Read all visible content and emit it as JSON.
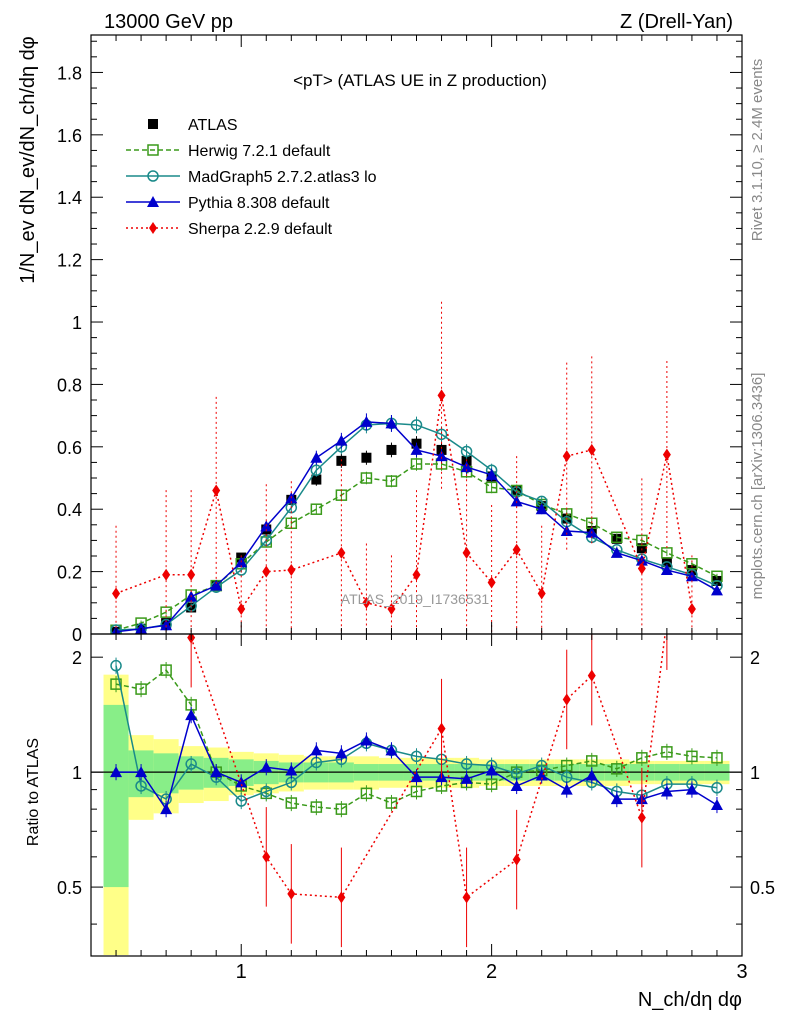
{
  "header": {
    "left": "13000 GeV pp",
    "right": "Z (Drell-Yan)"
  },
  "side_labels": {
    "rivet": "Rivet 3.1.10, ≥ 2.4M events",
    "mcplots": "mcplots.cern.ch [arXiv:1306.3436]"
  },
  "watermark": "ATLAS_2019_I1736531",
  "chart_data": {
    "type": "scatter",
    "title": "<pT> (ATLAS UE in Z production)",
    "xlabel": "N_ch/dη dφ",
    "ylabel": "1/N_ev dN_ev/dN_ch/dη dφ",
    "ratio_ylabel": "Ratio to ATLAS",
    "xlim": [
      0.4,
      3.0
    ],
    "ylim": [
      0,
      1.92
    ],
    "ratio_ylim": [
      0.33,
      2.3
    ],
    "x_ticks": [
      "1",
      "2",
      "3"
    ],
    "y_ticks": [
      "0",
      "0.2",
      "0.4",
      "0.6",
      "0.8",
      "1",
      "1.2",
      "1.4",
      "1.6",
      "1.8"
    ],
    "ratio_ticks": [
      "0.5",
      "1",
      "2"
    ],
    "legend_position": "top-left",
    "x": [
      0.5,
      0.6,
      0.7,
      0.8,
      0.9,
      1.0,
      1.1,
      1.2,
      1.3,
      1.4,
      1.5,
      1.6,
      1.7,
      1.8,
      1.9,
      2.0,
      2.1,
      2.2,
      2.3,
      2.4,
      2.5,
      2.6,
      2.7,
      2.8,
      2.9
    ],
    "series": [
      {
        "name": "ATLAS",
        "color": "#000000",
        "marker": "filled-square",
        "line": "none",
        "values": [
          0.007,
          0.017,
          0.035,
          0.085,
          0.155,
          0.245,
          0.335,
          0.43,
          0.495,
          0.555,
          0.565,
          0.59,
          0.61,
          0.59,
          0.555,
          0.505,
          0.46,
          0.41,
          0.37,
          0.33,
          0.305,
          0.275,
          0.23,
          0.205,
          0.17
        ]
      },
      {
        "name": "Herwig 7.2.1 default",
        "color": "#3a9a1a",
        "marker": "open-square",
        "line": "dashed",
        "values": [
          0.012,
          0.035,
          0.07,
          0.125,
          0.155,
          0.225,
          0.295,
          0.355,
          0.4,
          0.445,
          0.5,
          0.49,
          0.545,
          0.545,
          0.52,
          0.47,
          0.46,
          0.415,
          0.385,
          0.355,
          0.31,
          0.3,
          0.26,
          0.225,
          0.185
        ]
      },
      {
        "name": "MadGraph5 2.7.2.atlas3 lo",
        "color": "#1a8a8a",
        "marker": "open-circle",
        "line": "solid",
        "values": [
          0.013,
          0.016,
          0.03,
          0.09,
          0.15,
          0.205,
          0.3,
          0.405,
          0.525,
          0.6,
          0.67,
          0.675,
          0.67,
          0.64,
          0.585,
          0.525,
          0.455,
          0.425,
          0.36,
          0.31,
          0.27,
          0.24,
          0.215,
          0.19,
          0.155
        ]
      },
      {
        "name": "Pythia 8.308 default",
        "color": "#0000cc",
        "marker": "filled-triangle",
        "line": "solid",
        "values": [
          0.007,
          0.017,
          0.028,
          0.12,
          0.155,
          0.23,
          0.345,
          0.435,
          0.565,
          0.62,
          0.68,
          0.675,
          0.59,
          0.57,
          0.535,
          0.51,
          0.425,
          0.4,
          0.33,
          0.325,
          0.26,
          0.235,
          0.205,
          0.185,
          0.14
        ]
      },
      {
        "name": "Sherpa 2.2.9 default",
        "color": "#ee0000",
        "marker": "filled-diamond",
        "line": "dotted",
        "values": [
          0.13,
          null,
          0.19,
          0.19,
          0.46,
          0.08,
          0.2,
          0.205,
          null,
          0.26,
          0.1,
          0.08,
          0.19,
          0.765,
          0.26,
          0.165,
          0.27,
          0.13,
          0.57,
          0.59,
          null,
          0.21,
          0.575,
          0.08,
          null
        ]
      }
    ],
    "ratio_series": [
      {
        "name": "Herwig 7.2.1 default",
        "values": [
          1.7,
          1.65,
          1.85,
          1.5,
          1.0,
          0.92,
          0.88,
          0.83,
          0.81,
          0.8,
          0.88,
          0.83,
          0.89,
          0.92,
          0.94,
          0.93,
          1.0,
          1.01,
          1.04,
          1.07,
          1.02,
          1.09,
          1.13,
          1.1,
          1.09
        ]
      },
      {
        "name": "MadGraph5 2.7.2.atlas3 lo",
        "values": [
          1.9,
          0.92,
          0.85,
          1.05,
          0.97,
          0.84,
          0.89,
          0.94,
          1.06,
          1.08,
          1.19,
          1.14,
          1.1,
          1.08,
          1.05,
          1.04,
          0.99,
          1.04,
          0.97,
          0.94,
          0.89,
          0.87,
          0.93,
          0.93,
          0.91
        ]
      },
      {
        "name": "Pythia 8.308 default",
        "values": [
          1.0,
          1.0,
          0.8,
          1.41,
          1.0,
          0.94,
          1.03,
          1.01,
          1.14,
          1.12,
          1.21,
          1.14,
          0.97,
          0.97,
          0.96,
          1.01,
          0.92,
          0.98,
          0.9,
          0.98,
          0.85,
          0.85,
          0.89,
          0.9,
          0.82
        ]
      },
      {
        "name": "Sherpa 2.2.9 default",
        "values": [
          null,
          null,
          null,
          2.25,
          null,
          null,
          0.6,
          0.48,
          null,
          0.47,
          null,
          null,
          null,
          1.3,
          0.47,
          null,
          0.59,
          null,
          1.55,
          1.79,
          null,
          0.76,
          2.5,
          null,
          null
        ]
      }
    ],
    "band_outer_half": [
      0.8,
      0.25,
      0.22,
      0.17,
      0.16,
      0.13,
      0.12,
      0.11,
      0.1,
      0.1,
      0.1,
      0.09,
      0.09,
      0.09,
      0.09,
      0.08,
      0.08,
      0.08,
      0.08,
      0.08,
      0.08,
      0.07,
      0.07,
      0.07,
      0.07
    ],
    "band_inner_half": [
      0.5,
      0.14,
      0.12,
      0.1,
      0.09,
      0.08,
      0.07,
      0.06,
      0.06,
      0.06,
      0.05,
      0.05,
      0.05,
      0.05,
      0.05,
      0.05,
      0.05,
      0.05,
      0.05,
      0.05,
      0.05,
      0.05,
      0.05,
      0.05,
      0.05
    ]
  }
}
